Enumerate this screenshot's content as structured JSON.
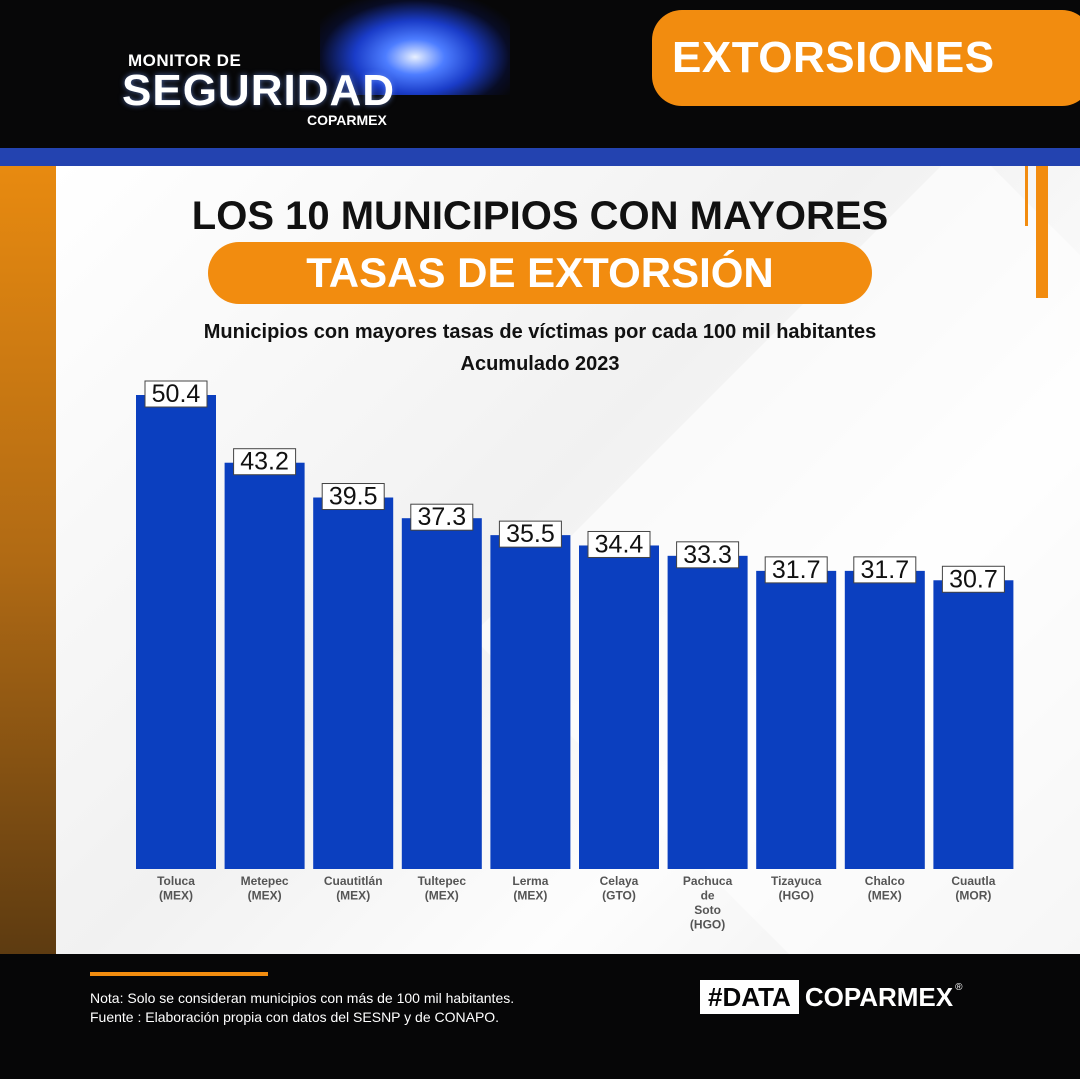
{
  "header": {
    "logo_line1": "MONITOR DE",
    "logo_line2": "SEGURIDAD",
    "logo_line3": "COPARMEX",
    "section_label": "EXTORSIONES"
  },
  "title": {
    "line1": "LOS 10 MUNICIPIOS CON MAYORES",
    "line2": "TASAS DE EXTORSIÓN"
  },
  "subtitle": {
    "line1": "Municipios con mayores tasas de víctimas por cada 100 mil habitantes",
    "line2": "Acumulado 2023"
  },
  "chart_data": {
    "type": "bar",
    "categories": [
      [
        "Toluca",
        "(MEX)"
      ],
      [
        "Metepec",
        "(MEX)"
      ],
      [
        "Cuautitlán",
        "(MEX)"
      ],
      [
        "Tultepec",
        "(MEX)"
      ],
      [
        "Lerma",
        "(MEX)"
      ],
      [
        "Celaya",
        "(GTO)"
      ],
      [
        "Pachuca",
        "de",
        "Soto",
        "(HGO)"
      ],
      [
        "Tizayuca",
        "(HGO)"
      ],
      [
        "Chalco",
        "(MEX)"
      ],
      [
        "Cuautla",
        "(MOR)"
      ]
    ],
    "values": [
      50.4,
      43.2,
      39.5,
      37.3,
      35.5,
      34.4,
      33.3,
      31.7,
      31.7,
      30.7
    ],
    "value_labels": [
      "50.4",
      "43.2",
      "39.5",
      "37.3",
      "35.5",
      "34.4",
      "33.3",
      "31.7",
      "31.7",
      "30.7"
    ],
    "ylim": [
      0,
      50.4
    ],
    "bar_color": "#0b3fbf",
    "grid": false,
    "legend": "none"
  },
  "footer": {
    "note": "Nota: Solo se consideran municipios con más de 100 mil habitantes.",
    "source": "Fuente : Elaboración propia con datos del SESNP y de CONAPO.",
    "tag_highlight": "#DATA",
    "tag_text": "COPARMEX",
    "tag_mark": "®"
  },
  "colors": {
    "accent_orange": "#f28c0f",
    "brand_blue": "#2343b0",
    "bar_blue": "#0b3fbf"
  }
}
